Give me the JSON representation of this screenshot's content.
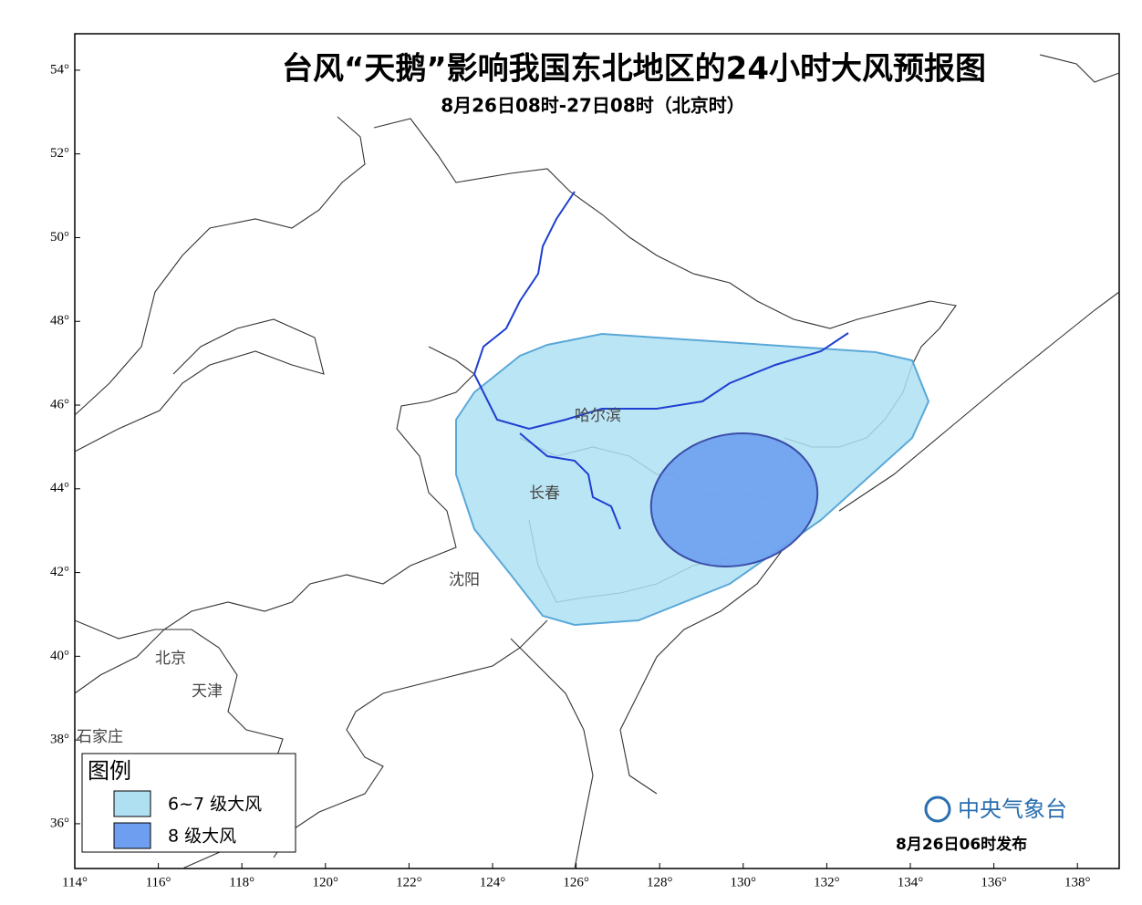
{
  "map": {
    "title": "台风“天鹅”影响我国东北地区的24小时大风预报图",
    "subtitle": "8月26日08时-27日08时（北京时）",
    "xlim": [
      114,
      139
    ],
    "ylim": [
      34.93,
      54.87
    ],
    "xticks": [
      {
        "value": 114,
        "label": "114°"
      },
      {
        "value": 116,
        "label": "116°"
      },
      {
        "value": 118,
        "label": "118°"
      },
      {
        "value": 120,
        "label": "120°"
      },
      {
        "value": 122,
        "label": "122°"
      },
      {
        "value": 124,
        "label": "124°"
      },
      {
        "value": 126,
        "label": "126°"
      },
      {
        "value": 128,
        "label": "128°"
      },
      {
        "value": 130,
        "label": "130°"
      },
      {
        "value": 132,
        "label": "132°"
      },
      {
        "value": 134,
        "label": "134°"
      },
      {
        "value": 136,
        "label": "136°"
      },
      {
        "value": 138,
        "label": "138°"
      }
    ],
    "yticks": [
      {
        "value": 36,
        "label": "36°"
      },
      {
        "value": 38,
        "label": "38°"
      },
      {
        "value": 40,
        "label": "40°"
      },
      {
        "value": 42,
        "label": "42°"
      },
      {
        "value": 44,
        "label": "44°"
      },
      {
        "value": 46,
        "label": "46°"
      },
      {
        "value": 48,
        "label": "48°"
      },
      {
        "value": 50,
        "label": "50°"
      },
      {
        "value": 52,
        "label": "52°"
      },
      {
        "value": 54,
        "label": "54°"
      }
    ],
    "cities": [
      "哈尔滨",
      "长春",
      "沈阳",
      "北京",
      "天津",
      "石家庄"
    ],
    "legend": {
      "title": "图例",
      "items": [
        "6~7 级大风",
        "8 级大风"
      ]
    },
    "agency": "中央气象台",
    "issued": "8月26日06时发布"
  }
}
